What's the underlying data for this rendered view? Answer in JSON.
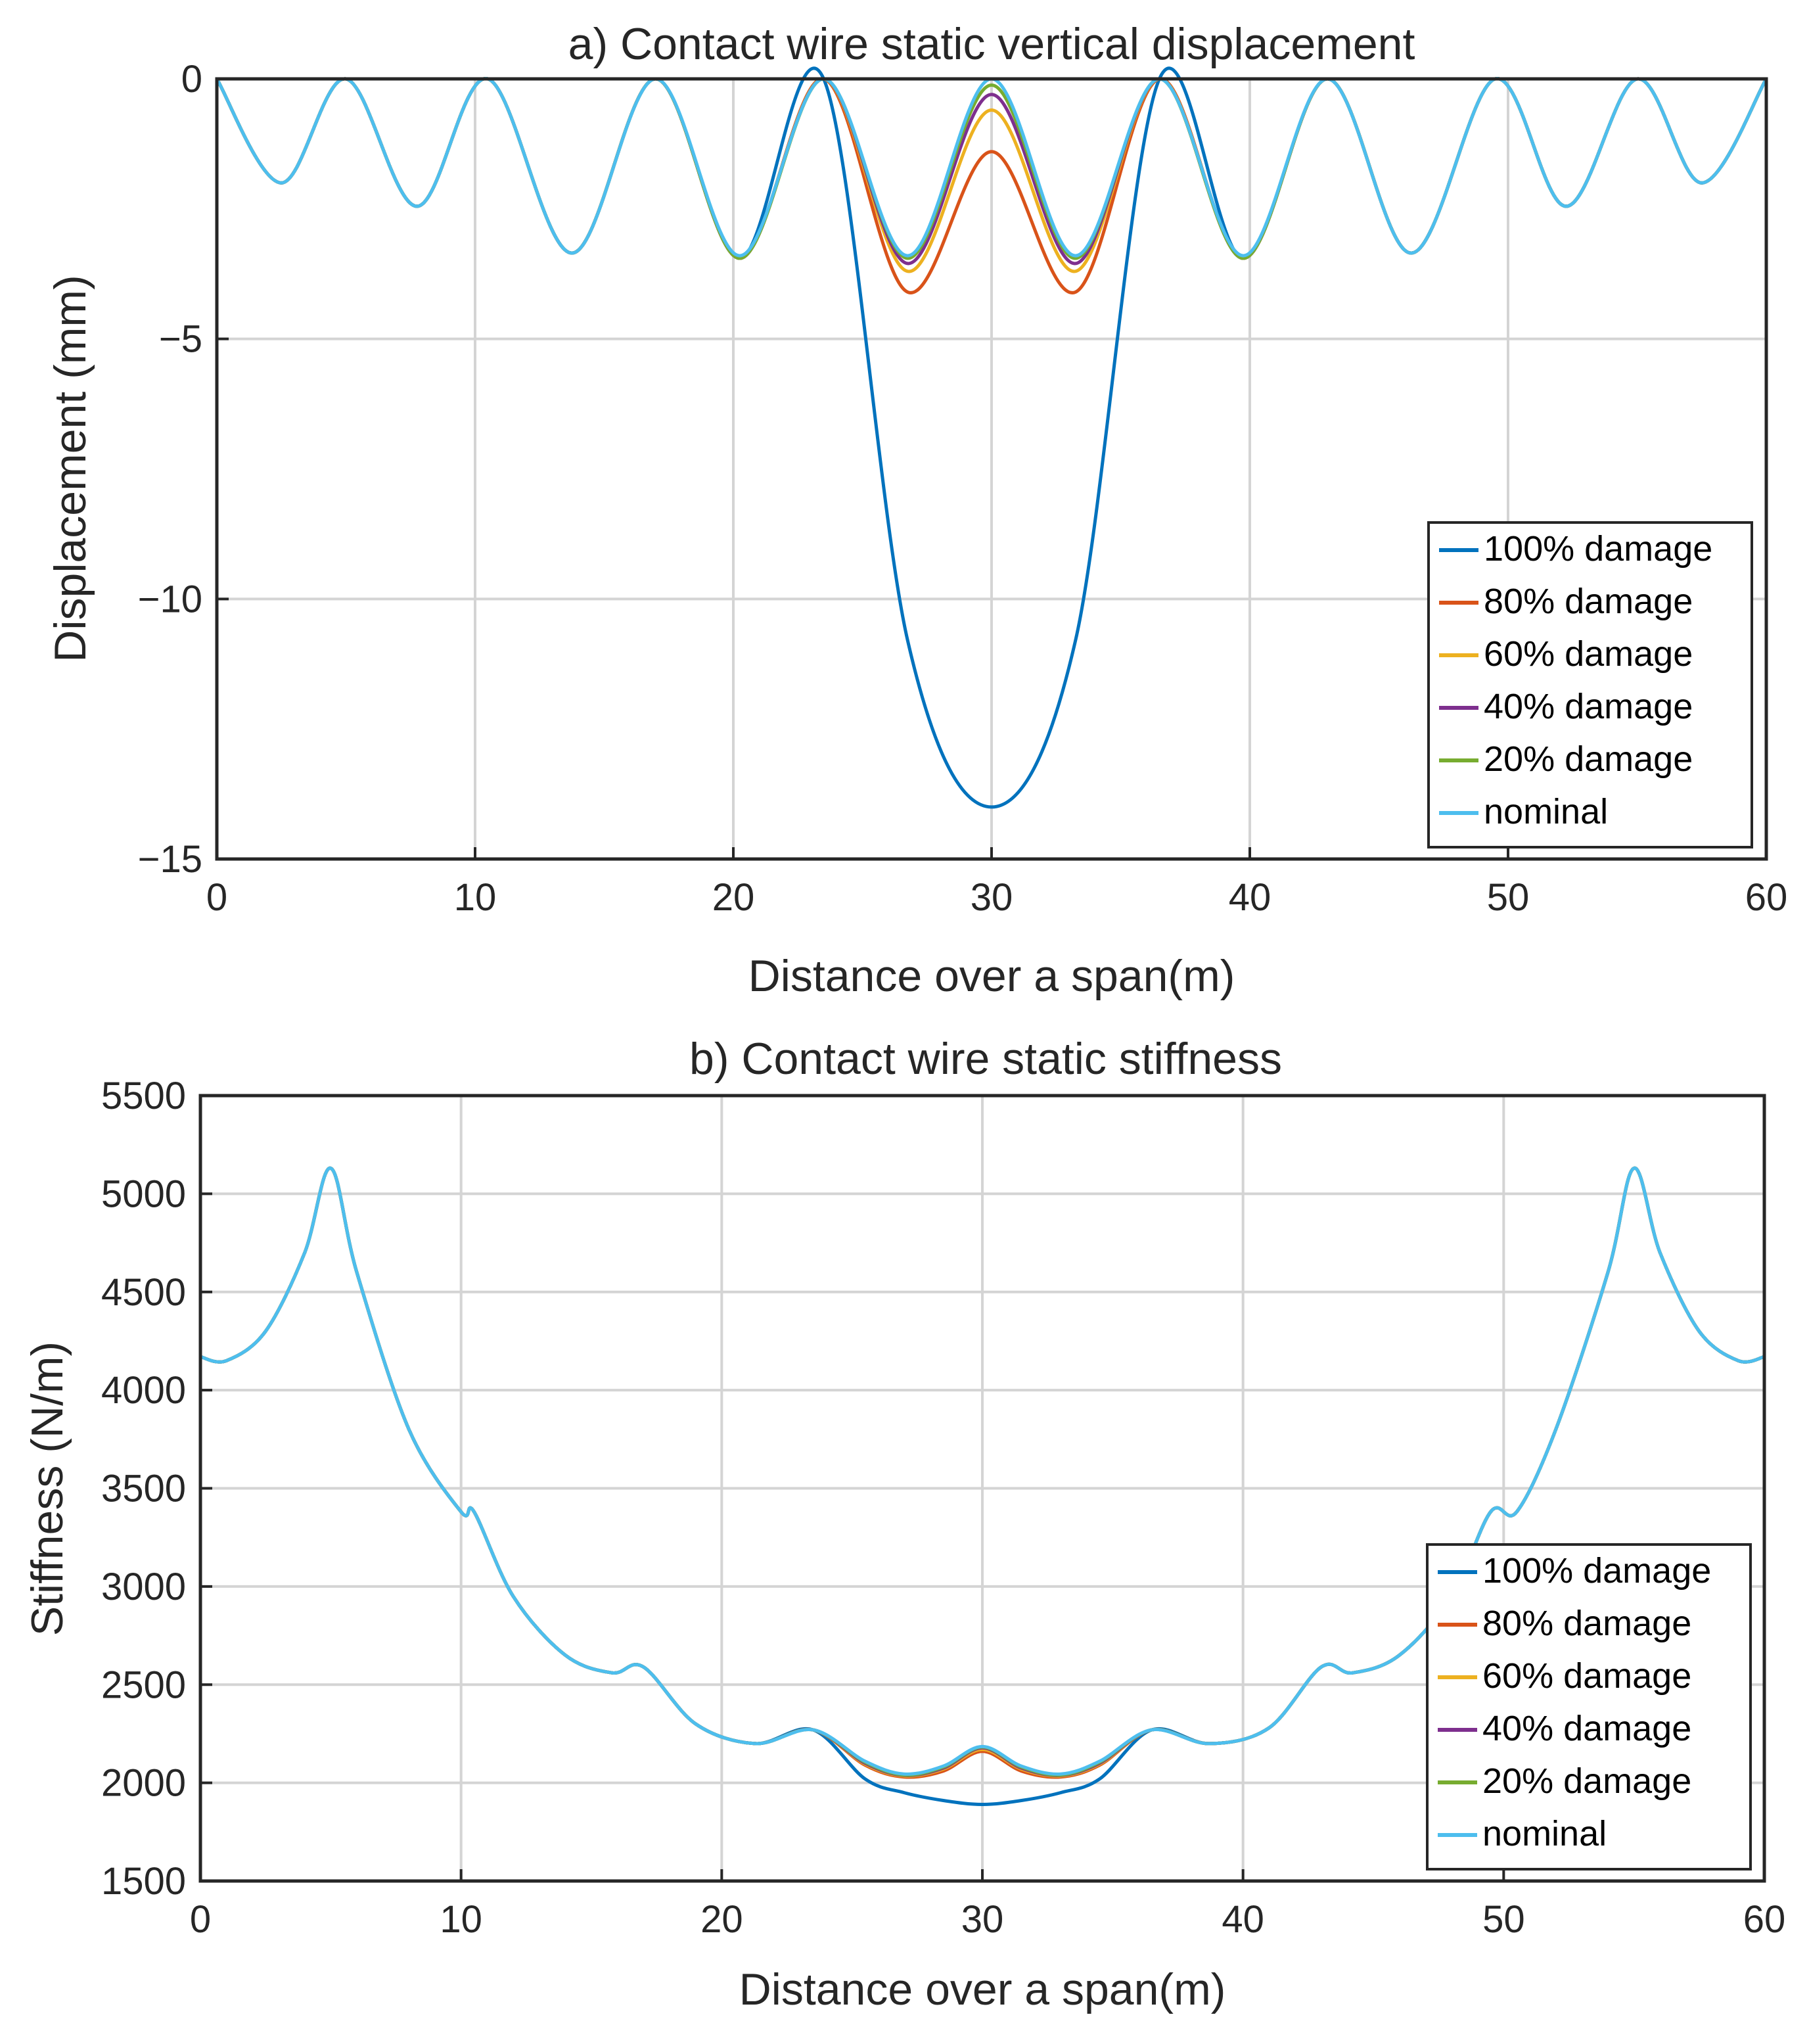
{
  "chart_data": [
    {
      "type": "line",
      "title": "a) Contact wire static vertical displacement",
      "xlabel": "Distance over a span(m)",
      "ylabel": "Displacement (mm)",
      "xlim": [
        0,
        60
      ],
      "ylim": [
        -15,
        0
      ],
      "xticks": [
        0,
        10,
        20,
        30,
        40,
        50,
        60
      ],
      "xtick_labels": [
        "0",
        "10",
        "20",
        "30",
        "40",
        "50",
        "60"
      ],
      "yticks": [
        0,
        -5,
        -10,
        -15
      ],
      "ytick_labels": [
        "0",
        "−5",
        "−10",
        "−15"
      ],
      "grid": true,
      "legend_position": "bottom-right",
      "x": [
        0,
        2.5,
        5,
        7.75,
        10.5,
        13.75,
        17,
        20.25,
        23.5,
        26.75,
        30,
        33.25,
        36.5,
        39.75,
        43,
        46.25,
        49.5,
        52.25,
        55,
        57.5,
        60
      ],
      "series": [
        {
          "name": "100% damage",
          "color": "#0072BD",
          "values": [
            0,
            -2.0,
            0,
            -2.45,
            0,
            -3.35,
            0,
            -3.45,
            0,
            -10.8,
            -14.0,
            -10.8,
            0,
            -3.45,
            0,
            -3.35,
            0,
            -2.45,
            0,
            -2.0,
            0
          ]
        },
        {
          "name": "80% damage",
          "color": "#D95319",
          "values": [
            0,
            -2.0,
            0,
            -2.45,
            0,
            -3.35,
            0,
            -3.45,
            0,
            -4.1,
            -1.4,
            -4.1,
            0,
            -3.45,
            0,
            -3.35,
            0,
            -2.45,
            0,
            -2.0,
            0
          ]
        },
        {
          "name": "60% damage",
          "color": "#EDB120",
          "values": [
            0,
            -2.0,
            0,
            -2.45,
            0,
            -3.35,
            0,
            -3.45,
            0,
            -3.7,
            -0.6,
            -3.7,
            0,
            -3.45,
            0,
            -3.35,
            0,
            -2.45,
            0,
            -2.0,
            0
          ]
        },
        {
          "name": "40% damage",
          "color": "#7E2F8E",
          "values": [
            0,
            -2.0,
            0,
            -2.45,
            0,
            -3.35,
            0,
            -3.45,
            0,
            -3.55,
            -0.3,
            -3.55,
            0,
            -3.45,
            0,
            -3.35,
            0,
            -2.45,
            0,
            -2.0,
            0
          ]
        },
        {
          "name": "20% damage",
          "color": "#77AC30",
          "values": [
            0,
            -2.0,
            0,
            -2.45,
            0,
            -3.35,
            0,
            -3.45,
            0,
            -3.45,
            -0.12,
            -3.45,
            0,
            -3.45,
            0,
            -3.35,
            0,
            -2.45,
            0,
            -2.0,
            0
          ]
        },
        {
          "name": "nominal",
          "color": "#4DBEEE",
          "values": [
            0,
            -2.0,
            0,
            -2.45,
            0,
            -3.35,
            0,
            -3.4,
            0,
            -3.4,
            0,
            -3.4,
            0,
            -3.4,
            0,
            -3.35,
            0,
            -2.45,
            0,
            -2.0,
            0
          ]
        }
      ]
    },
    {
      "type": "line",
      "title": "b) Contact wire static stiffness",
      "xlabel": "Distance over a span(m)",
      "ylabel": "Stiffness (N/m)",
      "xlim": [
        0,
        60
      ],
      "ylim": [
        1500,
        5500
      ],
      "xticks": [
        0,
        10,
        20,
        30,
        40,
        50,
        60
      ],
      "xtick_labels": [
        "0",
        "10",
        "20",
        "30",
        "40",
        "50",
        "60"
      ],
      "yticks": [
        1500,
        2000,
        2500,
        3000,
        3500,
        4000,
        4500,
        5000,
        5500
      ],
      "ytick_labels": [
        "1500",
        "2000",
        "2500",
        "3000",
        "3500",
        "4000",
        "4500",
        "5000",
        "5500"
      ],
      "grid": true,
      "legend_position": "bottom-right",
      "x": [
        0,
        1,
        2.5,
        4,
        5,
        6,
        8,
        10,
        10.5,
        12,
        14,
        15.8,
        17,
        19,
        21.3,
        23.5,
        25.5,
        27,
        28.5,
        30,
        31.5,
        33,
        34.5,
        36.5,
        38.7,
        41,
        43,
        44.2,
        46,
        48,
        49.5,
        50.5,
        52,
        54,
        55,
        56,
        57.5,
        59,
        60
      ],
      "series": [
        {
          "name": "100% damage",
          "color": "#0072BD",
          "values": [
            4170,
            4150,
            4300,
            4700,
            5130,
            4600,
            3800,
            3380,
            3380,
            2950,
            2650,
            2560,
            2590,
            2300,
            2200,
            2270,
            2020,
            1950,
            1910,
            1890,
            1910,
            1950,
            2020,
            2270,
            2200,
            2280,
            2590,
            2560,
            2650,
            2950,
            3380,
            3380,
            3800,
            4600,
            5130,
            4700,
            4300,
            4150,
            4170
          ]
        },
        {
          "name": "80% damage",
          "color": "#D95319",
          "values": [
            4170,
            4150,
            4300,
            4700,
            5130,
            4600,
            3800,
            3380,
            3380,
            2950,
            2650,
            2560,
            2590,
            2300,
            2200,
            2270,
            2090,
            2030,
            2060,
            2160,
            2060,
            2030,
            2090,
            2270,
            2200,
            2280,
            2590,
            2560,
            2650,
            2950,
            3380,
            3380,
            3800,
            4600,
            5130,
            4700,
            4300,
            4150,
            4170
          ]
        },
        {
          "name": "60% damage",
          "color": "#EDB120",
          "values": [
            4170,
            4150,
            4300,
            4700,
            5130,
            4600,
            3800,
            3380,
            3380,
            2950,
            2650,
            2560,
            2590,
            2300,
            2200,
            2270,
            2095,
            2035,
            2070,
            2170,
            2070,
            2035,
            2095,
            2270,
            2200,
            2280,
            2590,
            2560,
            2650,
            2950,
            3380,
            3380,
            3800,
            4600,
            5130,
            4700,
            4300,
            4150,
            4170
          ]
        },
        {
          "name": "40% damage",
          "color": "#7E2F8E",
          "values": [
            4170,
            4150,
            4300,
            4700,
            5130,
            4600,
            3800,
            3380,
            3380,
            2950,
            2650,
            2560,
            2590,
            2300,
            2200,
            2270,
            2100,
            2038,
            2075,
            2178,
            2075,
            2038,
            2100,
            2270,
            2200,
            2280,
            2590,
            2560,
            2650,
            2950,
            3380,
            3380,
            3800,
            4600,
            5130,
            4700,
            4300,
            4150,
            4170
          ]
        },
        {
          "name": "20% damage",
          "color": "#77AC30",
          "values": [
            4170,
            4150,
            4300,
            4700,
            5130,
            4600,
            3800,
            3380,
            3380,
            2950,
            2650,
            2560,
            2590,
            2300,
            2200,
            2270,
            2105,
            2040,
            2080,
            2182,
            2080,
            2040,
            2105,
            2270,
            2200,
            2280,
            2590,
            2560,
            2650,
            2950,
            3380,
            3380,
            3800,
            4600,
            5130,
            4700,
            4300,
            4150,
            4170
          ]
        },
        {
          "name": "nominal",
          "color": "#4DBEEE",
          "values": [
            4170,
            4150,
            4300,
            4700,
            5130,
            4600,
            3800,
            3380,
            3380,
            2950,
            2650,
            2560,
            2590,
            2300,
            2200,
            2270,
            2110,
            2045,
            2085,
            2185,
            2085,
            2045,
            2110,
            2270,
            2200,
            2280,
            2590,
            2560,
            2650,
            2950,
            3380,
            3380,
            3800,
            4600,
            5130,
            4700,
            4300,
            4150,
            4170
          ]
        }
      ]
    }
  ]
}
